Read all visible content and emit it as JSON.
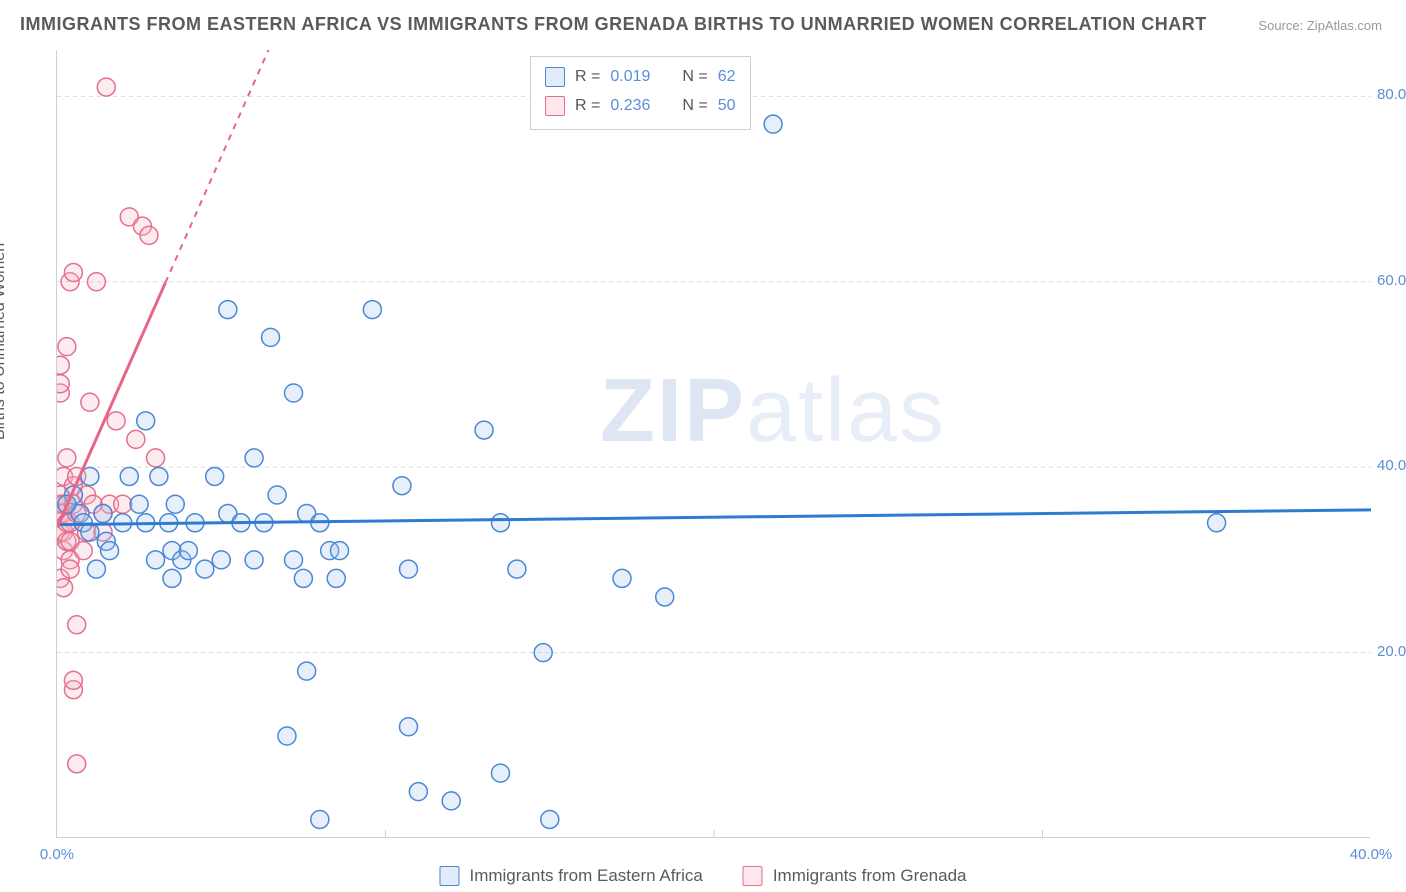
{
  "title": "IMMIGRANTS FROM EASTERN AFRICA VS IMMIGRANTS FROM GRENADA BIRTHS TO UNMARRIED WOMEN CORRELATION CHART",
  "source_label": "Source:",
  "source_name": "ZipAtlas.com",
  "yaxis_label": "Births to Unmarried Women",
  "watermark_zip": "ZIP",
  "watermark_atlas": "atlas",
  "chart": {
    "type": "scatter",
    "background_color": "#ffffff",
    "grid_color": "#d9d9d9",
    "xlim": [
      0,
      40
    ],
    "ylim": [
      0,
      85
    ],
    "x_ticks": [
      {
        "v": 0,
        "label": "0.0%"
      },
      {
        "v": 40,
        "label": "40.0%"
      }
    ],
    "x_minor_ticks": [
      10,
      20,
      30
    ],
    "y_ticks": [
      {
        "v": 20,
        "label": "20.0%"
      },
      {
        "v": 40,
        "label": "40.0%"
      },
      {
        "v": 60,
        "label": "60.0%"
      },
      {
        "v": 80,
        "label": "80.0%"
      }
    ],
    "label_fontsize": 16,
    "tick_color": "#5b8dd6",
    "tick_fontsize": 15,
    "marker_radius": 9,
    "marker_fill_opacity": 0.28,
    "series": [
      {
        "name": "Immigrants from Eastern Africa",
        "color_fill": "#a7c5ec",
        "color_stroke": "#4a88d6",
        "r_value": "0.019",
        "n_value": "62",
        "trend": {
          "slope": 0.04,
          "intercept": 33.8,
          "x0": 0,
          "x1": 40,
          "color": "#2f7bd1"
        },
        "points": [
          [
            0.7,
            35
          ],
          [
            0.8,
            34
          ],
          [
            0.5,
            37
          ],
          [
            1.0,
            39
          ],
          [
            0.3,
            36
          ],
          [
            1.2,
            29
          ],
          [
            1.0,
            33
          ],
          [
            2.0,
            34
          ],
          [
            2.2,
            39
          ],
          [
            1.5,
            32
          ],
          [
            1.6,
            31
          ],
          [
            2.7,
            45
          ],
          [
            2.7,
            34
          ],
          [
            3.1,
            39
          ],
          [
            3.4,
            34
          ],
          [
            3.6,
            36
          ],
          [
            3.5,
            31
          ],
          [
            3.8,
            30
          ],
          [
            3.0,
            30
          ],
          [
            3.5,
            28
          ],
          [
            4.2,
            34
          ],
          [
            4.0,
            31
          ],
          [
            4.8,
            39
          ],
          [
            5.2,
            57
          ],
          [
            5.2,
            35
          ],
          [
            5.6,
            34
          ],
          [
            6.0,
            41
          ],
          [
            6.3,
            34
          ],
          [
            6.5,
            54
          ],
          [
            6.7,
            37
          ],
          [
            7.2,
            48
          ],
          [
            7.2,
            30
          ],
          [
            7.5,
            28
          ],
          [
            7.6,
            35
          ],
          [
            7.6,
            18
          ],
          [
            8.0,
            2
          ],
          [
            8.0,
            34
          ],
          [
            7.0,
            11
          ],
          [
            8.3,
            31
          ],
          [
            8.5,
            28
          ],
          [
            8.6,
            31
          ],
          [
            9.6,
            57
          ],
          [
            10.5,
            38
          ],
          [
            10.7,
            29
          ],
          [
            10.7,
            12
          ],
          [
            11.0,
            5
          ],
          [
            12.0,
            4
          ],
          [
            13.0,
            44
          ],
          [
            13.5,
            34
          ],
          [
            13.5,
            7
          ],
          [
            14.0,
            29
          ],
          [
            14.8,
            20
          ],
          [
            15.0,
            2
          ],
          [
            17.2,
            28
          ],
          [
            18.5,
            26
          ],
          [
            21.8,
            77
          ],
          [
            35.3,
            34
          ],
          [
            1.4,
            35
          ],
          [
            2.5,
            36
          ],
          [
            4.5,
            29
          ],
          [
            5.0,
            30
          ],
          [
            6.0,
            30
          ]
        ]
      },
      {
        "name": "Immigrants from Grenada",
        "color_fill": "#f5b8c7",
        "color_stroke": "#e56f8f",
        "r_value": "0.236",
        "n_value": "50",
        "trend": {
          "slope": 8.0,
          "intercept": 33.5,
          "x0": 0,
          "x1_solid": 3.3,
          "x1_dash": 6.5,
          "color": "#e56685"
        },
        "points": [
          [
            0.1,
            33
          ],
          [
            0.1,
            35
          ],
          [
            0.1,
            36
          ],
          [
            0.1,
            37
          ],
          [
            0.1,
            28
          ],
          [
            0.1,
            48
          ],
          [
            0.1,
            51
          ],
          [
            0.1,
            49
          ],
          [
            0.2,
            33
          ],
          [
            0.2,
            36
          ],
          [
            0.2,
            39
          ],
          [
            0.2,
            35
          ],
          [
            0.2,
            27
          ],
          [
            0.2,
            31
          ],
          [
            0.3,
            34
          ],
          [
            0.3,
            32
          ],
          [
            0.3,
            36
          ],
          [
            0.3,
            41
          ],
          [
            0.3,
            53
          ],
          [
            0.4,
            30
          ],
          [
            0.4,
            32
          ],
          [
            0.4,
            34
          ],
          [
            0.4,
            29
          ],
          [
            0.4,
            60
          ],
          [
            0.5,
            36
          ],
          [
            0.5,
            16
          ],
          [
            0.5,
            17
          ],
          [
            0.5,
            61
          ],
          [
            0.5,
            38
          ],
          [
            0.6,
            8
          ],
          [
            0.6,
            23
          ],
          [
            0.6,
            35
          ],
          [
            0.6,
            39
          ],
          [
            0.8,
            31
          ],
          [
            0.9,
            33
          ],
          [
            0.9,
            37
          ],
          [
            1.0,
            47
          ],
          [
            1.1,
            36
          ],
          [
            1.2,
            60
          ],
          [
            1.4,
            33
          ],
          [
            1.4,
            35
          ],
          [
            1.5,
            81
          ],
          [
            1.6,
            36
          ],
          [
            1.8,
            45
          ],
          [
            2.0,
            36
          ],
          [
            2.2,
            67
          ],
          [
            2.4,
            43
          ],
          [
            2.6,
            66
          ],
          [
            2.8,
            65
          ],
          [
            3.0,
            41
          ]
        ]
      }
    ]
  },
  "stats_box": {
    "r_label": "R =",
    "n_label": "N ="
  }
}
